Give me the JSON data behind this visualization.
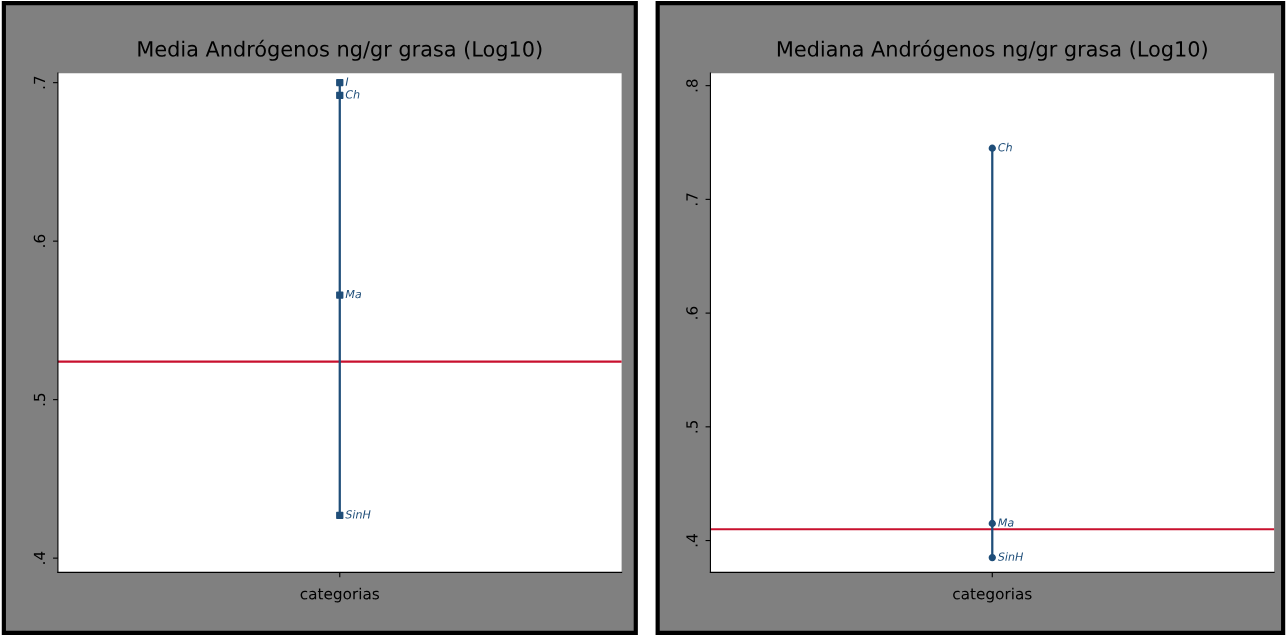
{
  "chart_data": [
    {
      "type": "scatter",
      "title": "Media Andrógenos ng/gr grasa (Log10)",
      "xlabel": "categorias",
      "categories": [
        null
      ],
      "ylim": [
        0.391,
        0.706
      ],
      "yticks": [
        {
          "value": 0.4,
          "label": ".4"
        },
        {
          "value": 0.5,
          "label": ".5"
        },
        {
          "value": 0.6,
          "label": ".6"
        },
        {
          "value": 0.7,
          "label": ".7"
        }
      ],
      "series": [
        {
          "type": "bar",
          "color": "#1f4e79",
          "base": [
            0.427
          ],
          "values": [
            0.273
          ]
        },
        {
          "name": "I",
          "color": "#1f4e79",
          "values": [
            0.7
          ]
        },
        {
          "name": "Ch",
          "color": "#1f4e79",
          "values": [
            0.692
          ]
        },
        {
          "name": "Ma",
          "color": "#1f4e79",
          "values": [
            0.566
          ]
        },
        {
          "name": "SinH",
          "color": "#1f4e79",
          "values": [
            0.427
          ]
        }
      ],
      "ref_lines": [
        {
          "axis": "y",
          "value": 0.524,
          "color": "#c8102e"
        }
      ],
      "grid": false,
      "legend": false,
      "marker": "square"
    },
    {
      "type": "scatter",
      "title": "Mediana Andrógenos ng/gr grasa (Log10)",
      "xlabel": "categorias",
      "categories": [
        null
      ],
      "ylim": [
        0.372,
        0.811
      ],
      "yticks": [
        {
          "value": 0.4,
          "label": ".4"
        },
        {
          "value": 0.5,
          "label": ".5"
        },
        {
          "value": 0.6,
          "label": ".6"
        },
        {
          "value": 0.7,
          "label": ".7"
        },
        {
          "value": 0.8,
          "label": ".8"
        }
      ],
      "series": [
        {
          "type": "bar",
          "color": "#1f4e79",
          "base": [
            0.385
          ],
          "values": [
            0.36
          ]
        },
        {
          "name": "Ch",
          "color": "#1f4e79",
          "values": [
            0.745
          ]
        },
        {
          "name": "Ma",
          "color": "#1f4e79",
          "values": [
            0.415
          ]
        },
        {
          "name": "SinH",
          "color": "#1f4e79",
          "values": [
            0.385
          ]
        }
      ],
      "ref_lines": [
        {
          "axis": "y",
          "value": 0.41,
          "color": "#c8102e"
        }
      ],
      "grid": false,
      "legend": false,
      "marker": "circle"
    }
  ]
}
